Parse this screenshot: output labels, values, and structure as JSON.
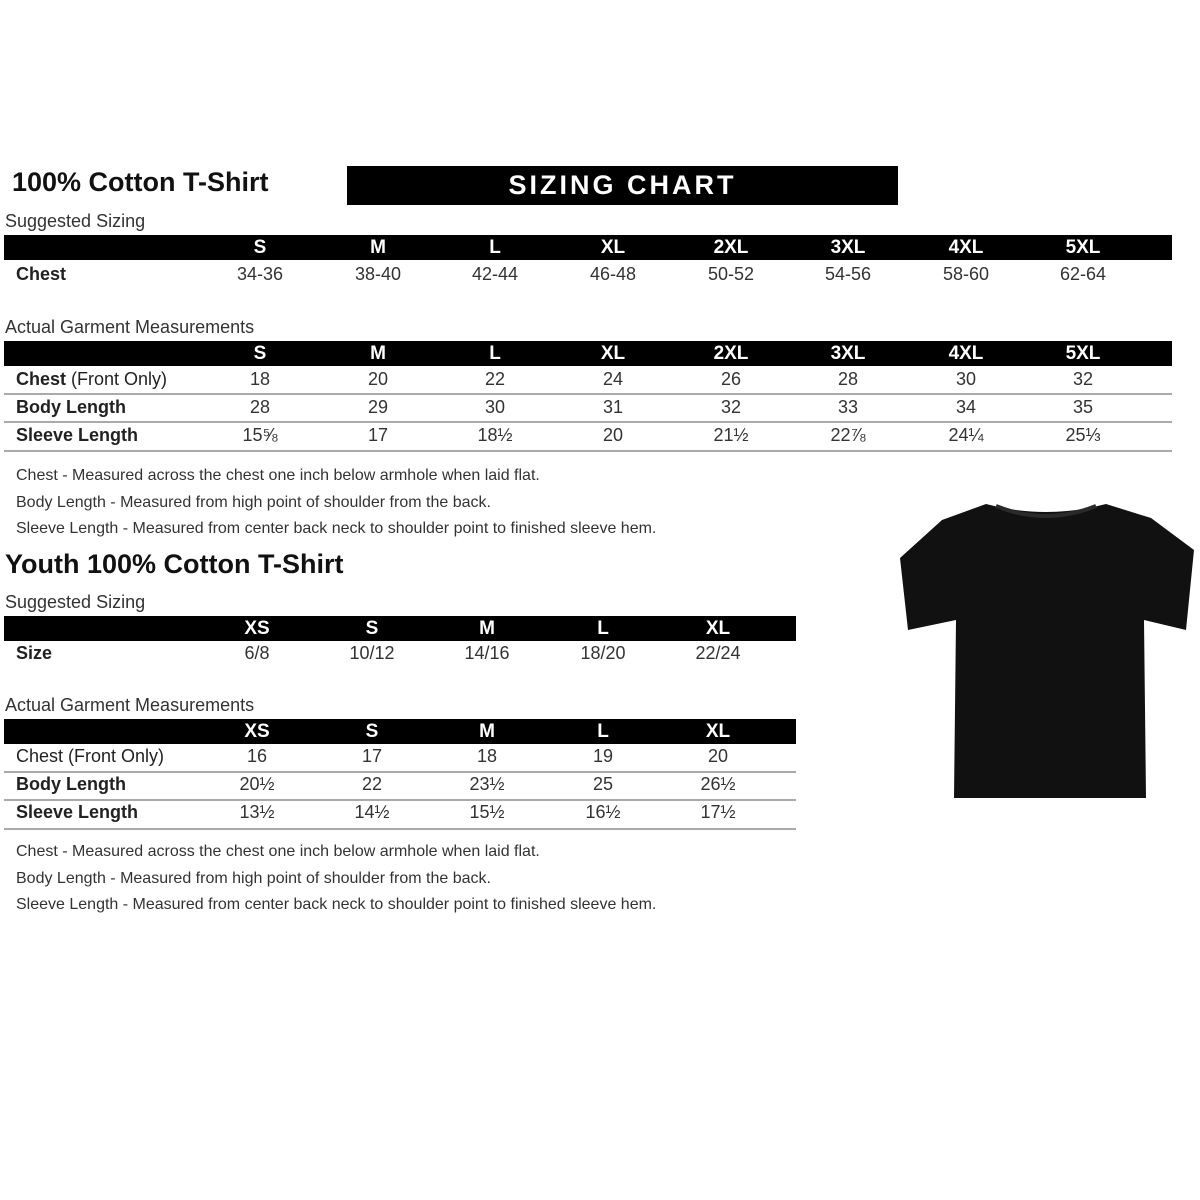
{
  "adult": {
    "title": "100% Cotton T-Shirt",
    "banner": "SIZING CHART",
    "suggested_label": "Suggested Sizing",
    "sizes": [
      "S",
      "M",
      "L",
      "XL",
      "2XL",
      "3XL",
      "4XL",
      "5XL"
    ],
    "suggested_rows": [
      {
        "label": "Chest",
        "values": [
          "34-36",
          "38-40",
          "42-44",
          "46-48",
          "50-52",
          "54-56",
          "58-60",
          "62-64"
        ]
      }
    ],
    "actual_label": "Actual Garment Measurements",
    "actual_rows": [
      {
        "label": "Chest",
        "label_suffix": "(Front Only)",
        "values": [
          "18",
          "20",
          "22",
          "24",
          "26",
          "28",
          "30",
          "32"
        ]
      },
      {
        "label": "Body Length",
        "label_suffix": "",
        "values": [
          "28",
          "29",
          "30",
          "31",
          "32",
          "33",
          "34",
          "35"
        ]
      },
      {
        "label": "Sleeve Length",
        "label_suffix": "",
        "values": [
          "15⅝",
          "17",
          "18½",
          "20",
          "21½",
          "22⅞",
          "24¼",
          "25⅓"
        ]
      }
    ],
    "notes": [
      "Chest - Measured across the chest one inch below armhole when laid flat.",
      "Body Length - Measured from high point of shoulder from the back.",
      "Sleeve Length - Measured from center back neck to shoulder point to finished sleeve hem."
    ]
  },
  "youth": {
    "title": "Youth 100% Cotton T-Shirt",
    "suggested_label": "Suggested Sizing",
    "sizes": [
      "XS",
      "S",
      "M",
      "L",
      "XL"
    ],
    "suggested_rows": [
      {
        "label": "Size",
        "values": [
          "6/8",
          "10/12",
          "14/16",
          "18/20",
          "22/24"
        ]
      }
    ],
    "actual_label": "Actual Garment Measurements",
    "actual_rows": [
      {
        "label": "Chest (Front Only)",
        "values": [
          "16",
          "17",
          "18",
          "19",
          "20"
        ]
      },
      {
        "label": "Body Length",
        "values": [
          "20½",
          "22",
          "23½",
          "25",
          "26½"
        ]
      },
      {
        "label": "Sleeve Length",
        "values": [
          "13½",
          "14½",
          "15½",
          "16½",
          "17½"
        ]
      }
    ],
    "notes": [
      "Chest - Measured across the chest one inch below armhole when laid flat.",
      "Body Length - Measured from high point of shoulder from the back.",
      "Sleeve Length - Measured from center back neck to shoulder point to finished sleeve hem."
    ]
  },
  "image": {
    "icon": "tshirt-icon",
    "color": "#111111"
  }
}
